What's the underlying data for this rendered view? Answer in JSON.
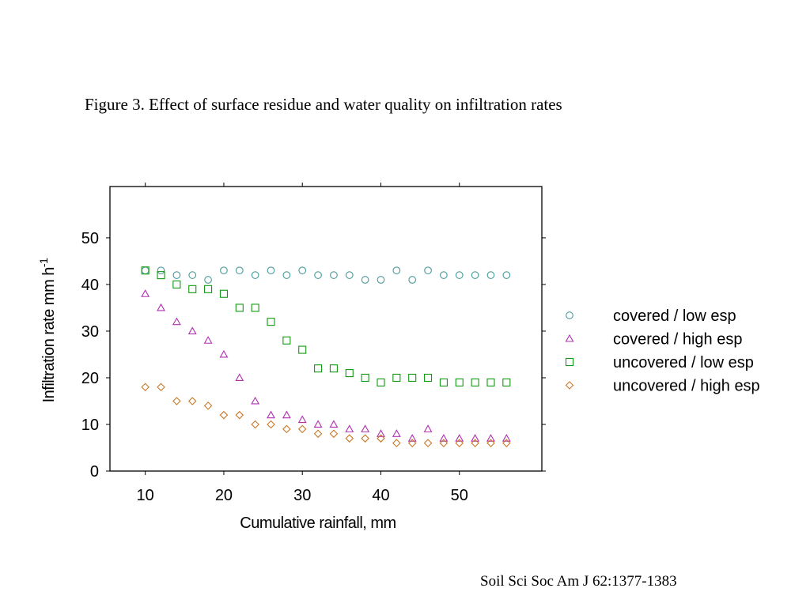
{
  "caption": "Figure 3.  Effect of surface residue and water quality on infiltration rates",
  "citation": "Soil Sci Soc Am J 62:1377-1383",
  "chart_data": {
    "type": "scatter",
    "xlabel": "Cumulative rainfall, mm",
    "ylabel": "Infiltration rate mm h",
    "ylabel_superscript": "-1",
    "xlim": [
      5.5,
      60.5
    ],
    "ylim": [
      0,
      61
    ],
    "xticks": [
      10,
      20,
      30,
      40,
      50
    ],
    "yticks": [
      0,
      10,
      20,
      30,
      40,
      50
    ],
    "grid": false,
    "legend_position": "right",
    "x": [
      10,
      12,
      14,
      16,
      18,
      20,
      22,
      24,
      26,
      28,
      30,
      32,
      34,
      36,
      38,
      40,
      42,
      44,
      46,
      48,
      50,
      52,
      54,
      56
    ],
    "series": [
      {
        "name": "covered / low  esp",
        "marker": "circle",
        "color": "#4a9a9a",
        "values": [
          43,
          43,
          42,
          42,
          41,
          43,
          43,
          42,
          43,
          42,
          43,
          42,
          42,
          42,
          41,
          41,
          43,
          41,
          43,
          42,
          42,
          42,
          42,
          42
        ]
      },
      {
        "name": "covered / high esp",
        "marker": "triangle",
        "color": "#b030b0",
        "values": [
          38,
          35,
          32,
          30,
          28,
          25,
          20,
          15,
          12,
          12,
          11,
          10,
          10,
          9,
          9,
          8,
          8,
          7,
          9,
          7,
          7,
          7,
          7,
          7
        ]
      },
      {
        "name": "uncovered / low  esp",
        "marker": "square",
        "color": "#119911",
        "values": [
          43,
          42,
          40,
          39,
          39,
          38,
          35,
          35,
          32,
          28,
          26,
          22,
          22,
          21,
          20,
          19,
          20,
          20,
          20,
          19,
          19,
          19,
          19,
          19
        ]
      },
      {
        "name": "uncovered / high esp",
        "marker": "diamond",
        "color": "#c87828",
        "values": [
          18,
          18,
          15,
          15,
          14,
          12,
          12,
          10,
          10,
          9,
          9,
          8,
          8,
          7,
          7,
          7,
          6,
          6,
          6,
          6,
          6,
          6,
          6,
          6
        ]
      }
    ]
  }
}
